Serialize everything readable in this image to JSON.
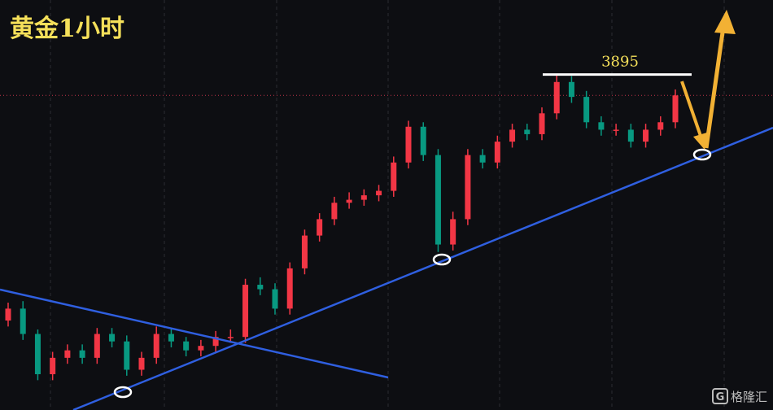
{
  "chart_data": {
    "type": "candlestick",
    "title": "黄金1小时",
    "open": [
      3730,
      3738,
      3721,
      3694,
      3705,
      3710,
      3705,
      3721,
      3716,
      3697,
      3705,
      3721,
      3716,
      3710,
      3713,
      3719,
      3719,
      3754,
      3751,
      3738,
      3765,
      3787,
      3798,
      3809,
      3811,
      3814,
      3817,
      3836,
      3860,
      3841,
      3781,
      3798,
      3841,
      3836,
      3850,
      3858,
      3855,
      3869,
      3890,
      3880,
      3863,
      3858,
      3858,
      3850,
      3858,
      3863
    ],
    "high": [
      3742,
      3743,
      3724,
      3709,
      3714,
      3714,
      3725,
      3725,
      3720,
      3709,
      3726,
      3725,
      3719,
      3717,
      3723,
      3724,
      3758,
      3759,
      3755,
      3769,
      3791,
      3802,
      3813,
      3816,
      3818,
      3821,
      3840,
      3864,
      3863,
      3845,
      3803,
      3845,
      3845,
      3854,
      3862,
      3862,
      3873,
      3895,
      3894,
      3884,
      3867,
      3862,
      3862,
      3862,
      3867,
      3885
    ],
    "low": [
      3726,
      3717,
      3690,
      3690,
      3701,
      3701,
      3701,
      3712,
      3693,
      3693,
      3701,
      3712,
      3706,
      3706,
      3709,
      3715,
      3715,
      3747,
      3734,
      3734,
      3761,
      3783,
      3794,
      3805,
      3807,
      3810,
      3813,
      3832,
      3837,
      3776,
      3777,
      3794,
      3832,
      3832,
      3846,
      3851,
      3851,
      3865,
      3876,
      3859,
      3854,
      3854,
      3846,
      3846,
      3854,
      3859
    ],
    "close": [
      3738,
      3721,
      3694,
      3705,
      3710,
      3705,
      3721,
      3716,
      3697,
      3705,
      3721,
      3716,
      3710,
      3713,
      3719,
      3719,
      3754,
      3751,
      3738,
      3765,
      3787,
      3798,
      3809,
      3811,
      3814,
      3817,
      3836,
      3860,
      3841,
      3781,
      3798,
      3841,
      3836,
      3850,
      3858,
      3855,
      3869,
      3890,
      3880,
      3863,
      3858,
      3858,
      3850,
      3858,
      3863,
      3881
    ],
    "up_color": "#f23645",
    "down_color": "#089981",
    "ylim": [
      3670,
      3945
    ],
    "grid": true,
    "resistance": 3895
  },
  "watermark": "格隆汇"
}
